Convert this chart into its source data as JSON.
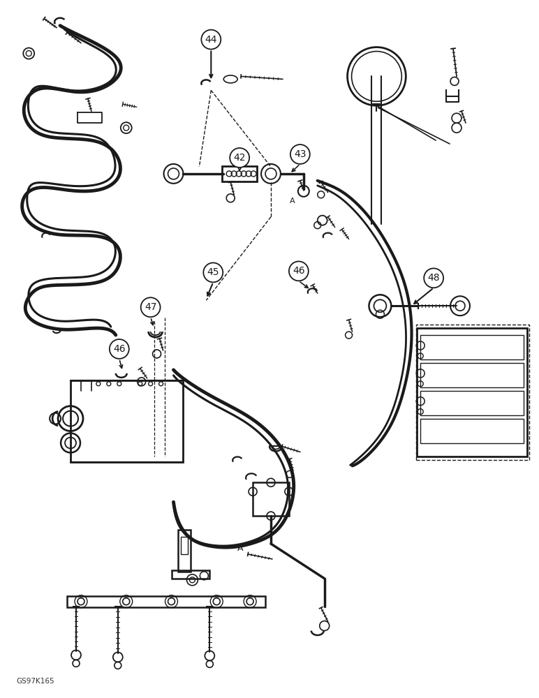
{
  "background_color": "#ffffff",
  "line_color": "#1a1a1a",
  "watermark": "GS97K165",
  "fig_w": 7.72,
  "fig_h": 10.0,
  "dpi": 100
}
